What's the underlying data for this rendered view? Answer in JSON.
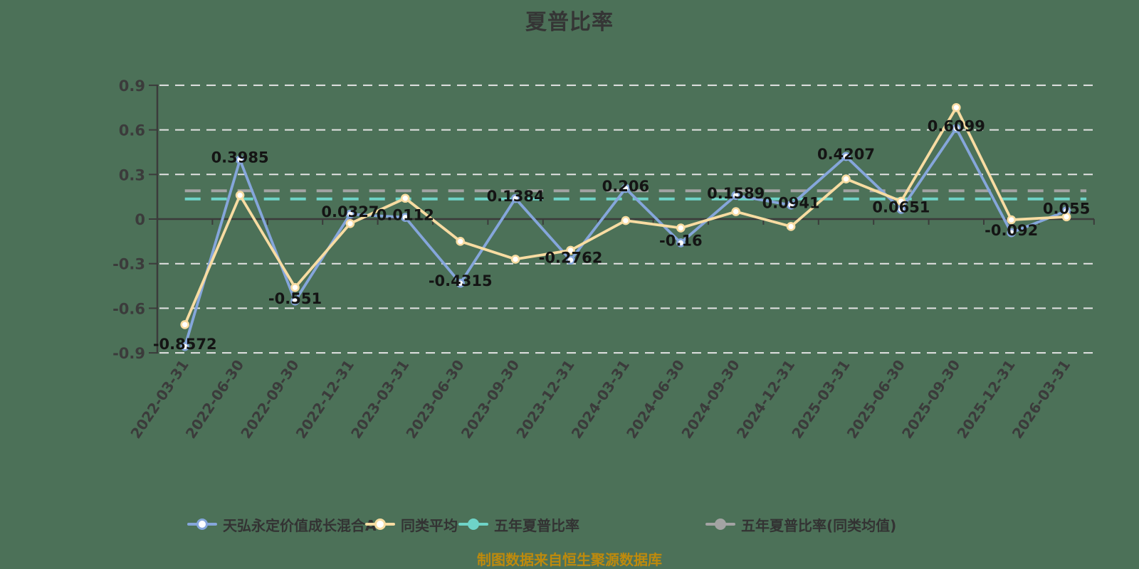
{
  "chart_data": {
    "type": "line",
    "title": "夏普比率",
    "footer_note": "制图数据来自恒生聚源数据库",
    "categories": [
      "2022-03-31",
      "2022-06-30",
      "2022-09-30",
      "2022-12-31",
      "2023-03-31",
      "2023-06-30",
      "2023-09-30",
      "2023-12-31",
      "2024-03-31",
      "2024-06-30",
      "2024-09-30",
      "2024-12-31",
      "2025-03-31",
      "2025-06-30",
      "2025-09-30",
      "2025-12-31",
      "2026-03-31"
    ],
    "y_axis": {
      "min": -0.9,
      "max": 0.9,
      "interval": 0.3,
      "ticks": [
        {
          "label": "0.9",
          "value": 0.9
        },
        {
          "label": "0.6",
          "value": 0.6
        },
        {
          "label": "0.3",
          "value": 0.3
        },
        {
          "label": "0",
          "value": 0
        },
        {
          "label": "-0.3",
          "value": -0.3
        },
        {
          "label": "-0.6",
          "value": -0.6
        },
        {
          "label": "-0.9",
          "value": -0.9
        }
      ]
    },
    "series": [
      {
        "name": "天弘永定价值成长混合A",
        "kind": "line",
        "color": "#85A6DB",
        "marker": "hollow-circle",
        "show_value_labels": true,
        "values": [
          -0.8572,
          0.3985,
          -0.551,
          0.0327,
          0.0112,
          -0.4315,
          0.1384,
          -0.2762,
          0.206,
          -0.16,
          0.1589,
          0.0941,
          0.4207,
          0.0651,
          0.6099,
          -0.092,
          0.055
        ]
      },
      {
        "name": "同类平均",
        "kind": "line",
        "color": "#F8DCA2",
        "marker": "hollow-circle",
        "show_value_labels": false,
        "values": [
          -0.71,
          0.16,
          -0.46,
          -0.03,
          0.14,
          -0.15,
          -0.27,
          -0.21,
          -0.01,
          -0.06,
          0.05,
          -0.05,
          0.27,
          0.12,
          0.75,
          -0.005,
          0.015
        ]
      },
      {
        "name": "五年夏普比率",
        "kind": "reference-line",
        "color": "#6ED3C7",
        "marker": "solid-circle",
        "value": 0.135
      },
      {
        "name": "五年夏普比率(同类均值)",
        "kind": "reference-line",
        "color": "#A3A3A3",
        "marker": "solid-circle",
        "value": 0.19
      }
    ],
    "legend_position": "bottom",
    "grid": "horizontal-dashed",
    "colors": {
      "background": "#4C7158",
      "gridline": "#E3E3E3",
      "axis": "#3B3B3B",
      "tick_label": "#3B3B3B",
      "value_label": "#141414",
      "legend_text": "#333333",
      "title": "#353535",
      "footer": "#BE8A0C",
      "marker_fill": "#FFFFFF"
    }
  }
}
